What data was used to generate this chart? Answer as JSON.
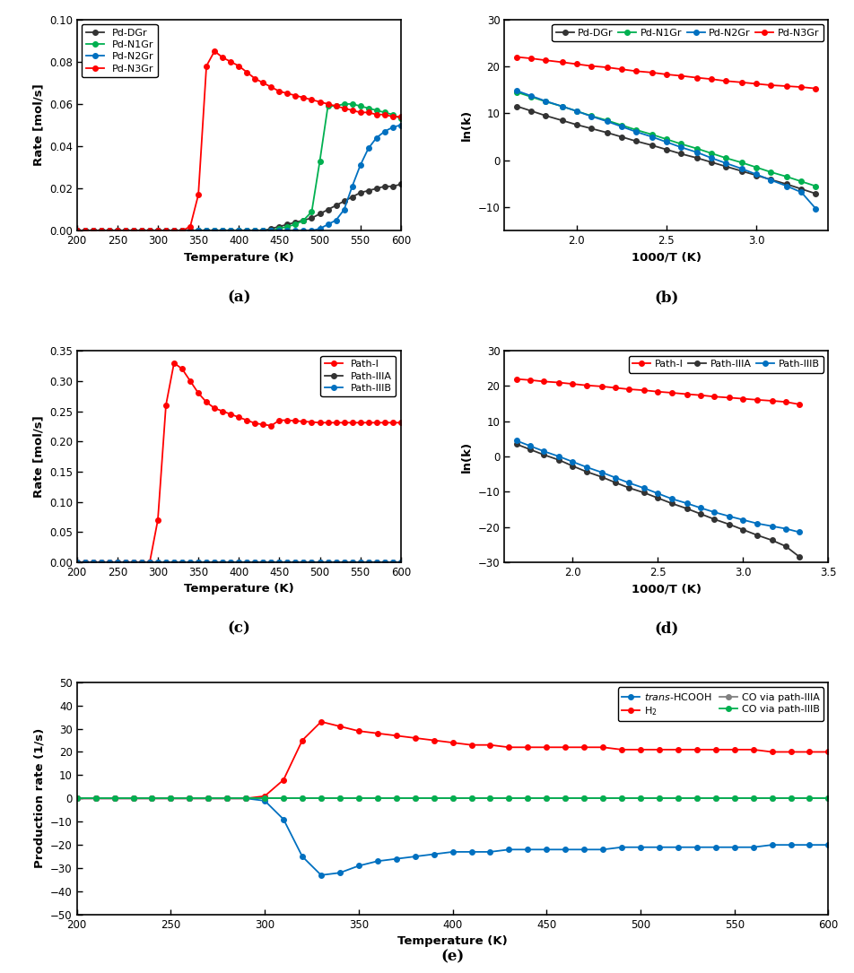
{
  "temp_a": [
    200,
    210,
    220,
    230,
    240,
    250,
    260,
    270,
    280,
    290,
    300,
    310,
    320,
    330,
    340,
    350,
    360,
    370,
    380,
    390,
    400,
    410,
    420,
    430,
    440,
    450,
    460,
    470,
    480,
    490,
    500,
    510,
    520,
    530,
    540,
    550,
    560,
    570,
    580,
    590,
    600
  ],
  "DGr_a": [
    0,
    0,
    0,
    0,
    0,
    0,
    0,
    0,
    0,
    0,
    0,
    0,
    0,
    0,
    0,
    0,
    0,
    0,
    0,
    0,
    0,
    0,
    0,
    0,
    0.001,
    0.002,
    0.003,
    0.004,
    0.005,
    0.006,
    0.008,
    0.01,
    0.012,
    0.014,
    0.016,
    0.018,
    0.019,
    0.02,
    0.021,
    0.021,
    0.022
  ],
  "N1Gr_a": [
    0,
    0,
    0,
    0,
    0,
    0,
    0,
    0,
    0,
    0,
    0,
    0,
    0,
    0,
    0,
    0,
    0,
    0,
    0,
    0,
    0,
    0,
    0,
    0,
    0,
    0.001,
    0.002,
    0.003,
    0.005,
    0.009,
    0.033,
    0.059,
    0.059,
    0.06,
    0.06,
    0.059,
    0.058,
    0.057,
    0.056,
    0.055,
    0.053
  ],
  "N2Gr_a": [
    0,
    0,
    0,
    0,
    0,
    0,
    0,
    0,
    0,
    0,
    0,
    0,
    0,
    0,
    0,
    0,
    0,
    0,
    0,
    0,
    0,
    0,
    0,
    0,
    0,
    0,
    0,
    0,
    0,
    0,
    0.001,
    0.003,
    0.005,
    0.01,
    0.021,
    0.031,
    0.039,
    0.044,
    0.047,
    0.049,
    0.05
  ],
  "N3Gr_a": [
    0,
    0,
    0,
    0,
    0,
    0,
    0,
    0,
    0,
    0,
    0,
    0,
    0,
    0,
    0.002,
    0.017,
    0.078,
    0.085,
    0.082,
    0.08,
    0.078,
    0.075,
    0.072,
    0.07,
    0.068,
    0.066,
    0.065,
    0.064,
    0.063,
    0.062,
    0.061,
    0.06,
    0.059,
    0.058,
    0.057,
    0.056,
    0.056,
    0.055,
    0.055,
    0.054,
    0.054
  ],
  "x_b": [
    1.67,
    1.75,
    1.83,
    1.92,
    2.0,
    2.08,
    2.17,
    2.25,
    2.33,
    2.42,
    2.5,
    2.58,
    2.67,
    2.75,
    2.83,
    2.92,
    3.0,
    3.08,
    3.17,
    3.25,
    3.33
  ],
  "DGr_b": [
    11.5,
    10.5,
    9.5,
    8.5,
    7.6,
    6.8,
    5.9,
    5.0,
    4.1,
    3.2,
    2.3,
    1.4,
    0.5,
    -0.4,
    -1.3,
    -2.3,
    -3.2,
    -4.1,
    -5.1,
    -6.1,
    -7.1
  ],
  "N1Gr_b": [
    14.5,
    13.5,
    12.5,
    11.5,
    10.5,
    9.5,
    8.5,
    7.5,
    6.5,
    5.5,
    4.5,
    3.5,
    2.5,
    1.5,
    0.5,
    -0.5,
    -1.5,
    -2.5,
    -3.5,
    -4.5,
    -5.5
  ],
  "N2Gr_b": [
    14.8,
    13.7,
    12.6,
    11.5,
    10.5,
    9.4,
    8.3,
    7.2,
    6.1,
    5.0,
    3.9,
    2.8,
    1.7,
    0.5,
    -0.6,
    -1.8,
    -3.0,
    -4.2,
    -5.5,
    -6.8,
    -10.3
  ],
  "N3Gr_b": [
    22.0,
    21.7,
    21.3,
    20.9,
    20.5,
    20.1,
    19.8,
    19.4,
    19.0,
    18.7,
    18.3,
    18.0,
    17.6,
    17.3,
    16.9,
    16.6,
    16.3,
    16.0,
    15.8,
    15.6,
    15.3
  ],
  "temp_c": [
    200,
    210,
    220,
    230,
    240,
    250,
    260,
    270,
    280,
    290,
    300,
    310,
    320,
    330,
    340,
    350,
    360,
    370,
    380,
    390,
    400,
    410,
    420,
    430,
    440,
    450,
    460,
    470,
    480,
    490,
    500,
    510,
    520,
    530,
    540,
    550,
    560,
    570,
    580,
    590,
    600
  ],
  "pathI_c": [
    0,
    0,
    0,
    0,
    0,
    0,
    0,
    0,
    0,
    0,
    0.07,
    0.26,
    0.33,
    0.32,
    0.3,
    0.28,
    0.265,
    0.255,
    0.25,
    0.245,
    0.24,
    0.235,
    0.23,
    0.228,
    0.226,
    0.235,
    0.235,
    0.234,
    0.233,
    0.232,
    0.231,
    0.231,
    0.231,
    0.231,
    0.231,
    0.231,
    0.231,
    0.231,
    0.231,
    0.231,
    0.231
  ],
  "pathIIIA_c": [
    0,
    0,
    0,
    0,
    0,
    0,
    0,
    0,
    0,
    0,
    0,
    0,
    0,
    0,
    0,
    0,
    0,
    0,
    0,
    0,
    0,
    0,
    0,
    0,
    0,
    0,
    0,
    0,
    0,
    0,
    0,
    0,
    0,
    0,
    0,
    0,
    0,
    0,
    0,
    0,
    0
  ],
  "pathIIIB_c": [
    0,
    0,
    0,
    0,
    0,
    0,
    0,
    0,
    0,
    0,
    0,
    0,
    0,
    0,
    0,
    0,
    0,
    0,
    0,
    0,
    0,
    0,
    0,
    0,
    0,
    0,
    0,
    0,
    0,
    0,
    0,
    0,
    0,
    0,
    0,
    0,
    0,
    0,
    0,
    0,
    0
  ],
  "x_d": [
    1.67,
    1.75,
    1.83,
    1.92,
    2.0,
    2.08,
    2.17,
    2.25,
    2.33,
    2.42,
    2.5,
    2.58,
    2.67,
    2.75,
    2.83,
    2.92,
    3.0,
    3.08,
    3.17,
    3.25,
    3.33
  ],
  "pathI_d": [
    22.0,
    21.7,
    21.3,
    21.0,
    20.6,
    20.2,
    19.9,
    19.5,
    19.1,
    18.8,
    18.4,
    18.1,
    17.7,
    17.4,
    17.0,
    16.7,
    16.4,
    16.1,
    15.8,
    15.5,
    14.8
  ],
  "pathIIIA_d": [
    3.5,
    2.0,
    0.5,
    -1.0,
    -2.7,
    -4.3,
    -5.8,
    -7.4,
    -8.9,
    -10.3,
    -11.8,
    -13.3,
    -14.8,
    -16.3,
    -17.8,
    -19.3,
    -20.8,
    -22.3,
    -23.8,
    -25.5,
    -28.5
  ],
  "pathIIIB_d": [
    4.5,
    3.0,
    1.5,
    0.0,
    -1.5,
    -3.0,
    -4.5,
    -6.0,
    -7.5,
    -9.0,
    -10.5,
    -12.0,
    -13.3,
    -14.6,
    -15.8,
    -17.0,
    -18.0,
    -19.0,
    -19.8,
    -20.5,
    -21.5
  ],
  "temp_e": [
    200,
    210,
    220,
    230,
    240,
    250,
    260,
    270,
    280,
    290,
    300,
    310,
    320,
    330,
    340,
    350,
    360,
    370,
    380,
    390,
    400,
    410,
    420,
    430,
    440,
    450,
    460,
    470,
    480,
    490,
    500,
    510,
    520,
    530,
    540,
    550,
    560,
    570,
    580,
    590,
    600
  ],
  "transFCOOH_e": [
    0,
    0,
    0,
    0,
    0,
    0,
    0,
    0,
    0,
    0,
    -1,
    -9,
    -25,
    -33,
    -32,
    -29,
    -27,
    -26,
    -25,
    -24,
    -23,
    -23,
    -23,
    -22,
    -22,
    -22,
    -22,
    -22,
    -22,
    -21,
    -21,
    -21,
    -21,
    -21,
    -21,
    -21,
    -21,
    -20,
    -20,
    -20,
    -20
  ],
  "H2_e": [
    0,
    0,
    0,
    0,
    0,
    0,
    0,
    0,
    0,
    0,
    1,
    8,
    25,
    33,
    31,
    29,
    28,
    27,
    26,
    25,
    24,
    23,
    23,
    22,
    22,
    22,
    22,
    22,
    22,
    21,
    21,
    21,
    21,
    21,
    21,
    21,
    21,
    20,
    20,
    20,
    20
  ],
  "CO_IIIA_e": [
    0,
    0,
    0,
    0,
    0,
    0,
    0,
    0,
    0,
    0,
    0,
    0,
    0,
    0,
    0,
    0,
    0,
    0,
    0,
    0,
    0,
    0,
    0,
    0,
    0,
    0,
    0,
    0,
    0,
    0,
    0,
    0,
    0,
    0,
    0,
    0,
    0,
    0,
    0,
    0,
    0
  ],
  "CO_IIIB_e": [
    0,
    0,
    0,
    0,
    0,
    0,
    0,
    0,
    0,
    0,
    0,
    0,
    0,
    0,
    0,
    0,
    0,
    0,
    0,
    0,
    0,
    0,
    0,
    0,
    0,
    0,
    0,
    0,
    0,
    0,
    0,
    0,
    0,
    0,
    0,
    0,
    0,
    0,
    0,
    0,
    0
  ],
  "color_DGr": "#333333",
  "color_N1Gr": "#00b050",
  "color_N2Gr": "#0070c0",
  "color_N3Gr": "#ff0000",
  "color_pathI": "#ff0000",
  "color_pathIIIA": "#333333",
  "color_pathIIIB": "#0070c0",
  "color_transFCOOH": "#0070c0",
  "color_H2": "#ff0000",
  "color_CO_IIIA": "#808080",
  "color_CO_IIIB": "#00b050"
}
